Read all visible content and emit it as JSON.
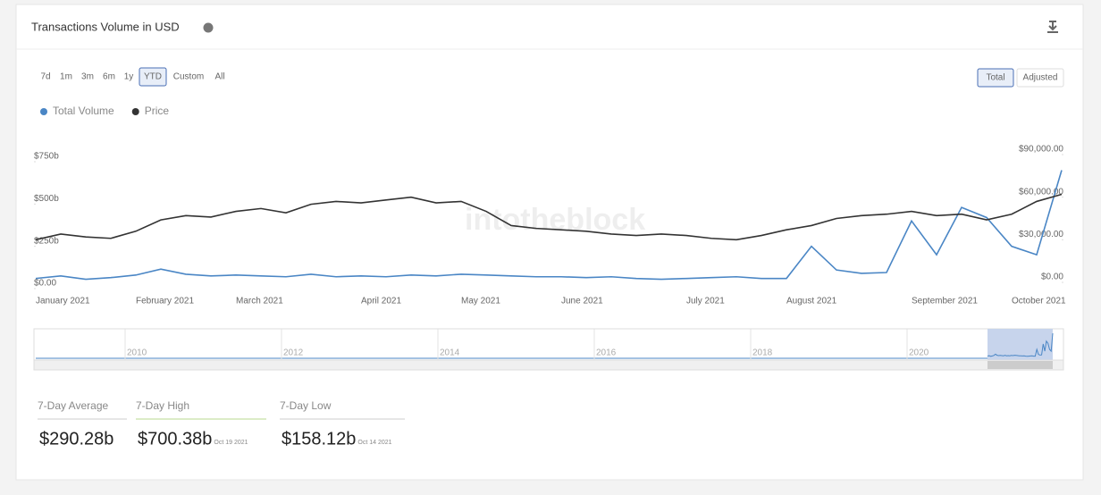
{
  "header": {
    "title": "Transactions Volume in USD"
  },
  "range_buttons": [
    "7d",
    "1m",
    "3m",
    "6m",
    "1y",
    "YTD",
    "Custom",
    "All"
  ],
  "mode_buttons": [
    "Total",
    "Adjusted"
  ],
  "watermark": "intotheblock",
  "navigator": {
    "labels": [
      "2010",
      "2012",
      "2014",
      "2016",
      "2018",
      "2020"
    ]
  },
  "stats": [
    {
      "label": "7-Day Average",
      "value": "$290.28b"
    },
    {
      "label": "7-Day High",
      "value": "$700.38b",
      "date": "Oct 19 2021"
    },
    {
      "label": "7-Day Low",
      "value": "$158.12b",
      "date": "Oct 14 2021"
    }
  ],
  "chart_data": {
    "type": "line",
    "categories": [
      "January 2021",
      null,
      null,
      null,
      "February 2021",
      null,
      null,
      null,
      "March 2021",
      null,
      null,
      null,
      null,
      "April 2021",
      null,
      null,
      null,
      "May 2021",
      null,
      null,
      null,
      "June 2021",
      null,
      null,
      null,
      null,
      "July 2021",
      null,
      null,
      null,
      "August 2021",
      null,
      null,
      null,
      null,
      "September 2021",
      null,
      null,
      null,
      "October 2021",
      null,
      null
    ],
    "series": [
      {
        "name": "Total Volume",
        "color": "#4a86c5",
        "values": [
          60,
          75,
          55,
          65,
          80,
          115,
          85,
          75,
          80,
          75,
          70,
          85,
          70,
          75,
          70,
          80,
          75,
          85,
          80,
          75,
          70,
          70,
          65,
          70,
          60,
          55,
          60,
          65,
          70,
          60,
          60,
          250,
          110,
          90,
          95,
          400,
          200,
          480,
          420,
          250,
          200,
          700
        ]
      },
      {
        "name": "Price",
        "color": "#333333",
        "axis": "y2",
        "values": [
          30000,
          34000,
          32000,
          31000,
          36000,
          44000,
          47000,
          46000,
          50000,
          52000,
          49000,
          55000,
          57000,
          56000,
          58000,
          60000,
          56000,
          57000,
          50000,
          40000,
          38000,
          37000,
          36000,
          34000,
          33000,
          34000,
          33000,
          31000,
          30000,
          33000,
          37000,
          40000,
          45000,
          47000,
          48000,
          50000,
          47000,
          48000,
          44000,
          48000,
          57000,
          62000
        ]
      }
    ],
    "ylim": [
      0,
      750
    ],
    "yticks": [
      {
        "value": 0,
        "label": "$0.00"
      },
      {
        "value": 250,
        "label": "$250b"
      },
      {
        "value": 500,
        "label": "$500b"
      },
      {
        "value": 750,
        "label": "$750b"
      }
    ],
    "y2lim": [
      0,
      90000
    ],
    "y2ticks": [
      {
        "value": 0,
        "label": "$0.00"
      },
      {
        "value": 30000,
        "label": "$30,000.00"
      },
      {
        "value": 60000,
        "label": "$60,000.00"
      },
      {
        "value": 90000,
        "label": "$90,000.00"
      }
    ],
    "legend": "top-left"
  }
}
